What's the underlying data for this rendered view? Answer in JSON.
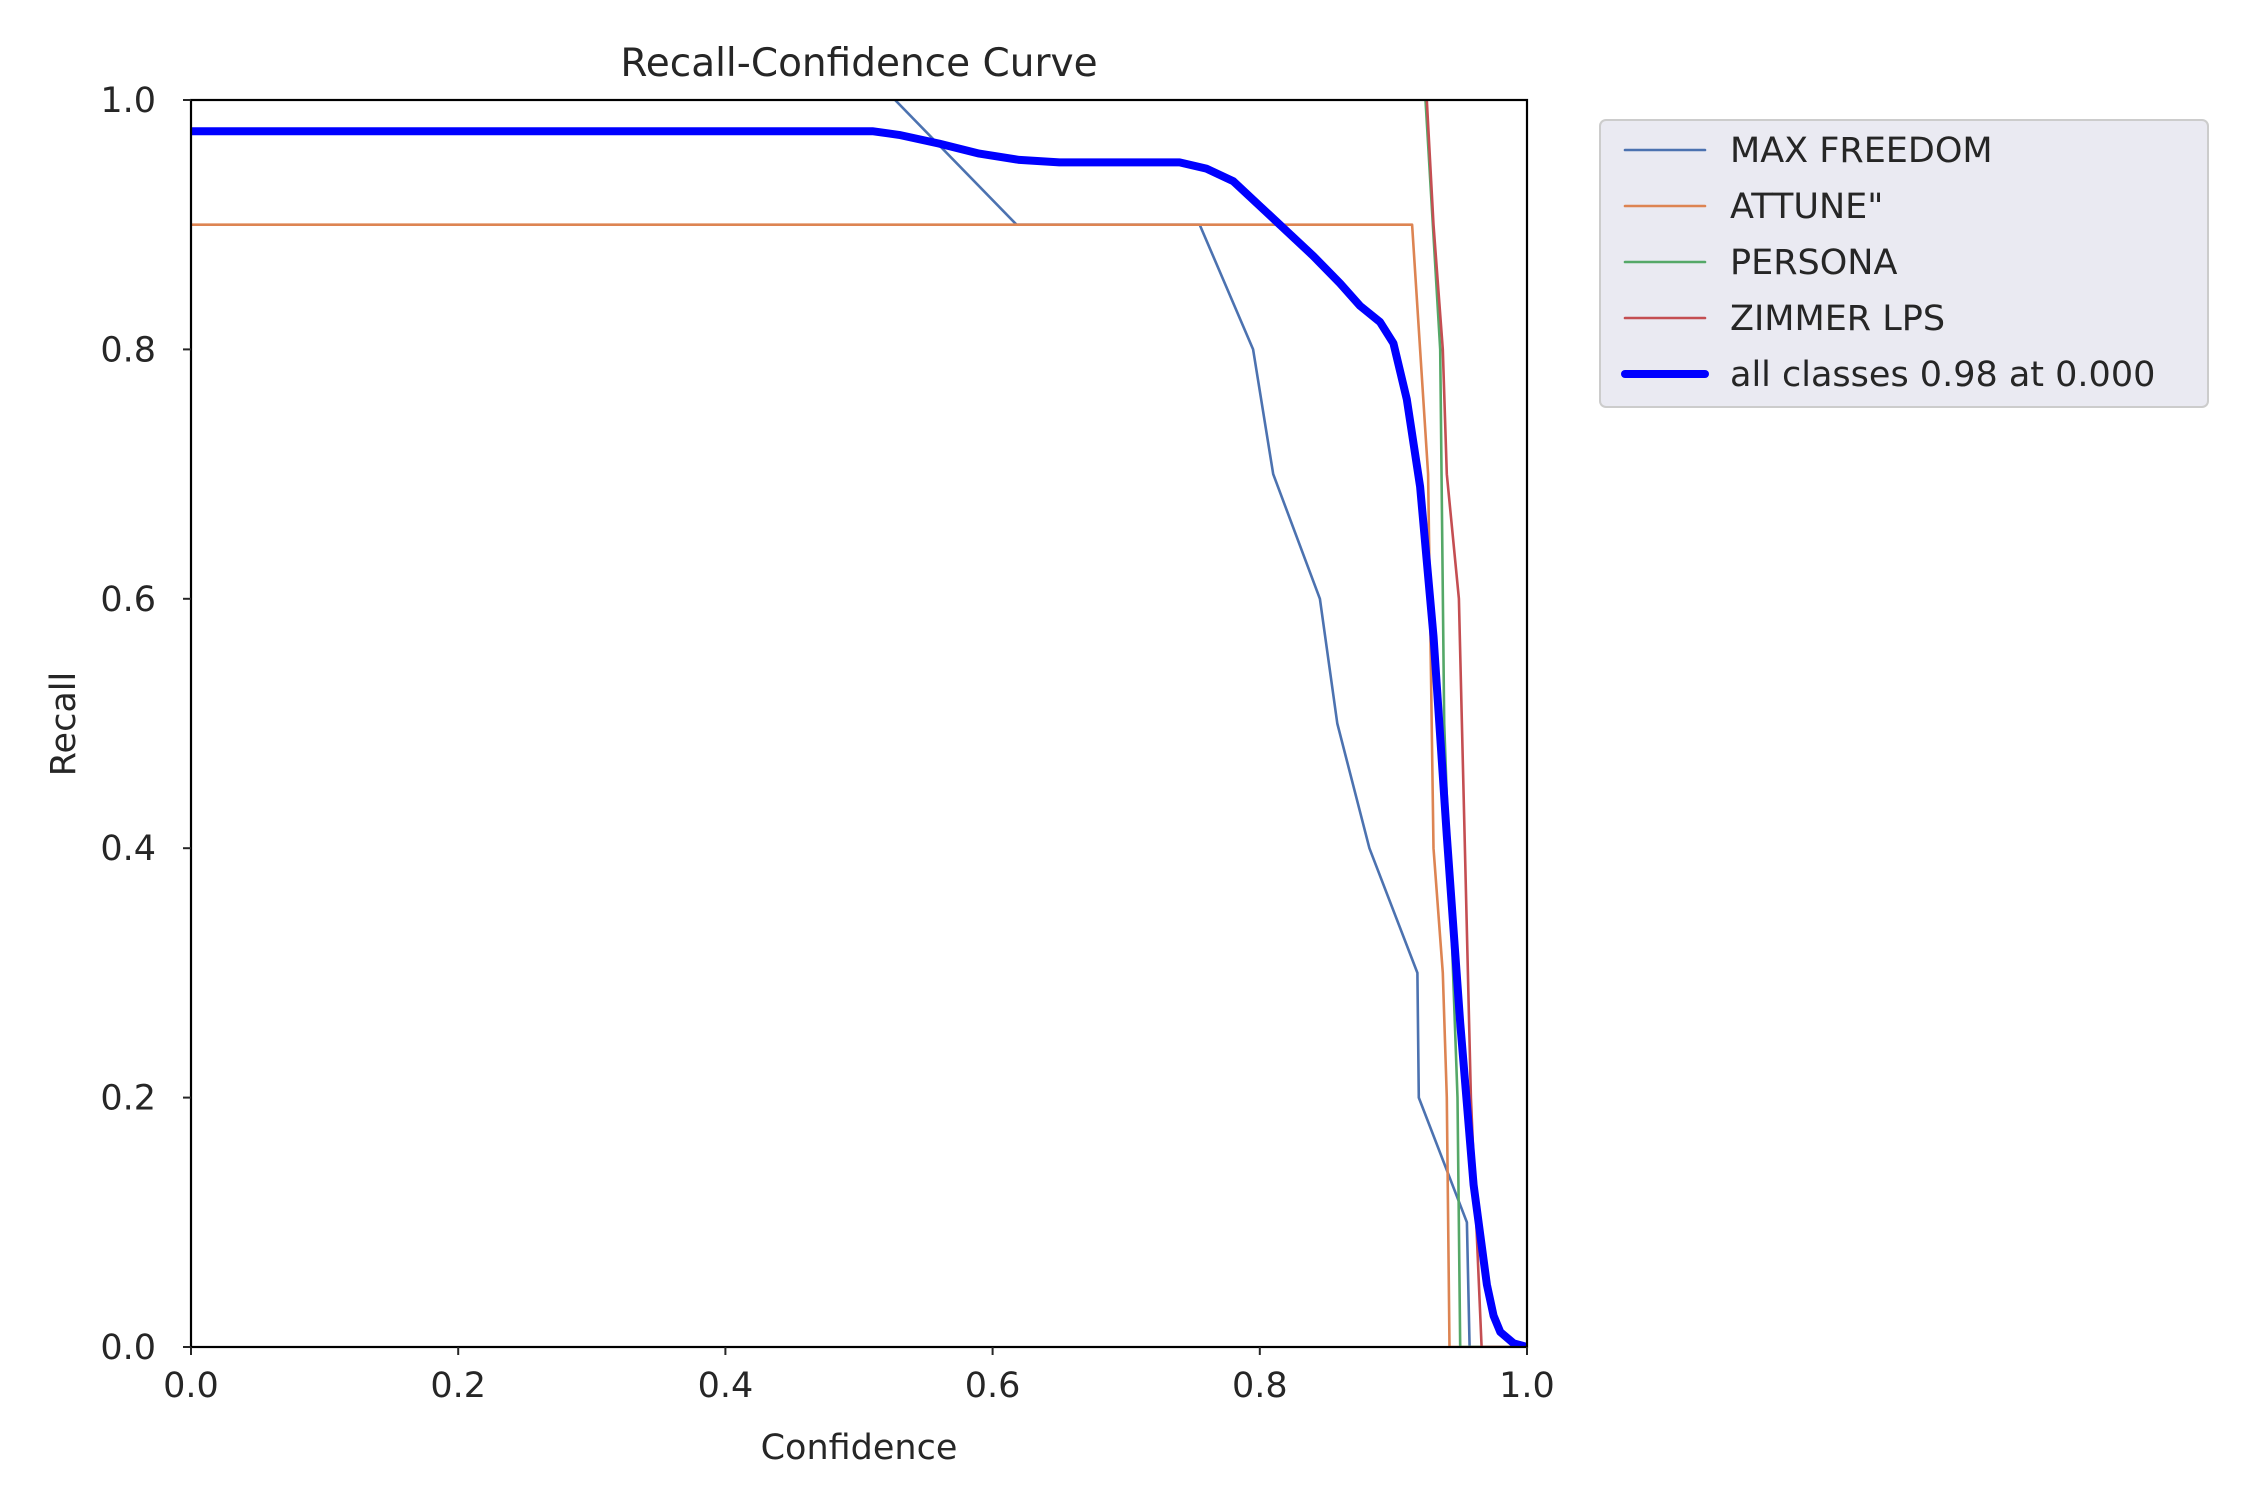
{
  "chart_data": {
    "type": "line",
    "title": "Recall-Confidence Curve",
    "xlabel": "Confidence",
    "ylabel": "Recall",
    "xlim": [
      0,
      1
    ],
    "ylim": [
      0,
      1
    ],
    "xticks": [
      "0.0",
      "0.2",
      "0.4",
      "0.6",
      "0.8",
      "1.0"
    ],
    "yticks": [
      "0.0",
      "0.2",
      "0.4",
      "0.6",
      "0.8",
      "1.0"
    ],
    "grid": false,
    "legend_position": "outside upper right",
    "series": [
      {
        "name": "MAX FREEDOM",
        "color": "#4c72b0",
        "width": "thin",
        "points": [
          [
            0.527,
            1.0
          ],
          [
            0.618,
            0.9
          ],
          [
            0.755,
            0.9
          ],
          [
            0.795,
            0.8
          ],
          [
            0.81,
            0.7
          ],
          [
            0.845,
            0.6
          ],
          [
            0.858,
            0.5
          ],
          [
            0.882,
            0.4
          ],
          [
            0.918,
            0.3
          ],
          [
            0.919,
            0.2
          ],
          [
            0.955,
            0.1
          ],
          [
            0.957,
            0.0
          ],
          [
            1.0,
            0.0
          ]
        ]
      },
      {
        "name": "ATTUNE\"",
        "color": "#dd8452",
        "width": "thin",
        "points": [
          [
            0.0,
            0.9
          ],
          [
            0.914,
            0.9
          ],
          [
            0.926,
            0.7
          ],
          [
            0.93,
            0.4
          ],
          [
            0.937,
            0.3
          ],
          [
            0.94,
            0.2
          ],
          [
            0.942,
            0.0
          ],
          [
            1.0,
            0.0
          ]
        ]
      },
      {
        "name": "PERSONA",
        "color": "#55a868",
        "width": "thin",
        "points": [
          [
            0.924,
            1.0
          ],
          [
            0.935,
            0.8
          ],
          [
            0.938,
            0.5
          ],
          [
            0.948,
            0.2
          ],
          [
            0.95,
            0.0
          ],
          [
            1.0,
            0.0
          ]
        ]
      },
      {
        "name": "ZIMMER LPS",
        "color": "#c44e52",
        "width": "thin",
        "points": [
          [
            0.925,
            1.0
          ],
          [
            0.93,
            0.9
          ],
          [
            0.937,
            0.8
          ],
          [
            0.94,
            0.7
          ],
          [
            0.949,
            0.6
          ],
          [
            0.958,
            0.2
          ],
          [
            0.966,
            0.0
          ],
          [
            1.0,
            0.0
          ]
        ]
      },
      {
        "name": "all classes 0.98 at 0.000",
        "color": "#0000ff",
        "width": "thick",
        "points": [
          [
            0.0,
            0.975
          ],
          [
            0.51,
            0.975
          ],
          [
            0.53,
            0.972
          ],
          [
            0.56,
            0.965
          ],
          [
            0.59,
            0.957
          ],
          [
            0.62,
            0.952
          ],
          [
            0.65,
            0.95
          ],
          [
            0.74,
            0.95
          ],
          [
            0.76,
            0.945
          ],
          [
            0.78,
            0.935
          ],
          [
            0.8,
            0.915
          ],
          [
            0.82,
            0.895
          ],
          [
            0.84,
            0.875
          ],
          [
            0.86,
            0.853
          ],
          [
            0.875,
            0.835
          ],
          [
            0.89,
            0.822
          ],
          [
            0.9,
            0.805
          ],
          [
            0.91,
            0.76
          ],
          [
            0.92,
            0.69
          ],
          [
            0.93,
            0.57
          ],
          [
            0.94,
            0.41
          ],
          [
            0.95,
            0.26
          ],
          [
            0.96,
            0.13
          ],
          [
            0.97,
            0.05
          ],
          [
            0.975,
            0.025
          ],
          [
            0.98,
            0.012
          ],
          [
            0.99,
            0.003
          ],
          [
            1.0,
            0.0
          ]
        ]
      }
    ]
  }
}
